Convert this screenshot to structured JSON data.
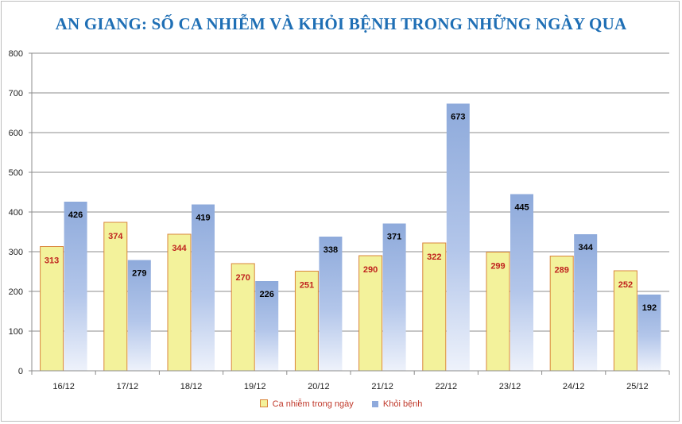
{
  "chart_data": {
    "type": "bar",
    "title": "AN GIANG: SỐ CA NHIỄM VÀ KHỎI BỆNH TRONG NHỮNG NGÀY QUA",
    "categories": [
      "16/12",
      "17/12",
      "18/12",
      "19/12",
      "20/12",
      "21/12",
      "22/12",
      "23/12",
      "24/12",
      "25/12"
    ],
    "series": [
      {
        "name": "Ca nhiễm trong ngày",
        "color": "#f3f29b",
        "border": "#d9853b",
        "label_color": "#c0231f",
        "values": [
          313,
          374,
          344,
          270,
          251,
          290,
          322,
          299,
          289,
          252
        ]
      },
      {
        "name": "Khỏi bệnh",
        "color": "#8faadc",
        "label_color": "#000000",
        "values": [
          426,
          279,
          419,
          226,
          338,
          371,
          673,
          445,
          344,
          192
        ]
      }
    ],
    "ylim": [
      0,
      800
    ],
    "yticks": [
      0,
      100,
      200,
      300,
      400,
      500,
      600,
      700,
      800
    ],
    "grid": true,
    "legend_position": "bottom"
  }
}
